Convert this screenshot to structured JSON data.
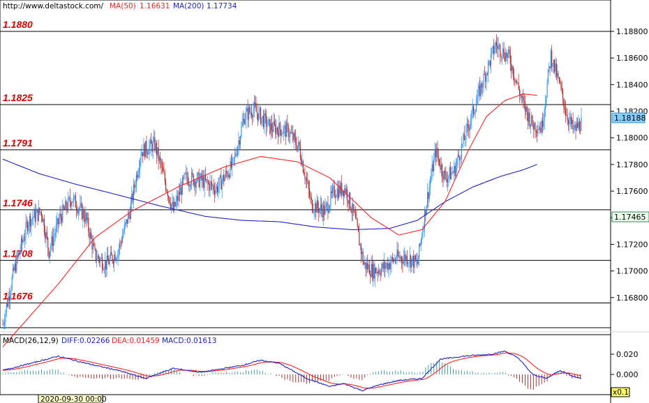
{
  "header": {
    "url": "http://www.deltastock.com/",
    "ma50_label": "MA(50)",
    "ma50_value": "1.16631",
    "ma200_label": "MA(200)",
    "ma200_value": "1.17734"
  },
  "macd_header": {
    "name": "MACD(26,12,9)",
    "diff": "DIFF:0.02266",
    "dea": "DEA:0.01459",
    "macd": "MACD:0.01613"
  },
  "footer": {
    "date": "2020-09-30 00:00",
    "zoom": "x0.1"
  },
  "colors": {
    "bull": "#1e90ff",
    "bear": "#b22222",
    "ma50": "#ff2020",
    "ma200": "#2020d0",
    "level_label": "#e00000",
    "current_price_bg": "#87cefa",
    "level_price_bg": "#eeffee"
  },
  "chart_data": {
    "type": "candlestick",
    "y_axis": {
      "ticks": [
        "1.18800",
        "1.18600",
        "1.18400",
        "1.18200",
        "1.18000",
        "1.17800",
        "1.17600",
        "1.17400",
        "1.17200",
        "1.17000",
        "1.16800"
      ]
    },
    "levels": [
      {
        "label": "1.1880",
        "value": 1.188
      },
      {
        "label": "1.1825",
        "value": 1.1825
      },
      {
        "label": "1.1791",
        "value": 1.1791
      },
      {
        "label": "1.1746",
        "value": 1.1746
      },
      {
        "label": "1.1708",
        "value": 1.1708
      },
      {
        "label": "1.1676",
        "value": 1.1676
      }
    ],
    "current_price": "1.18188",
    "level_price": "1.17465",
    "ma50_anchors": [
      [
        0,
        1.1643
      ],
      [
        60,
        1.169
      ],
      [
        100,
        1.1725
      ],
      [
        140,
        1.1745
      ],
      [
        190,
        1.1763
      ],
      [
        240,
        1.1778
      ],
      [
        280,
        1.1786
      ],
      [
        320,
        1.1782
      ],
      [
        355,
        1.177
      ],
      [
        400,
        1.174
      ],
      [
        430,
        1.1727
      ],
      [
        455,
        1.1731
      ],
      [
        480,
        1.1752
      ],
      [
        505,
        1.179
      ],
      [
        525,
        1.1816
      ],
      [
        545,
        1.1828
      ],
      [
        565,
        1.1833
      ],
      [
        580,
        1.1832
      ]
    ],
    "ma200_anchors": [
      [
        0,
        1.1784
      ],
      [
        40,
        1.1773
      ],
      [
        80,
        1.1765
      ],
      [
        120,
        1.1758
      ],
      [
        170,
        1.1749
      ],
      [
        220,
        1.1741
      ],
      [
        260,
        1.1738
      ],
      [
        300,
        1.1737
      ],
      [
        340,
        1.1733
      ],
      [
        380,
        1.1731
      ],
      [
        420,
        1.1732
      ],
      [
        450,
        1.1738
      ],
      [
        480,
        1.1752
      ],
      [
        510,
        1.1763
      ],
      [
        540,
        1.1771
      ],
      [
        565,
        1.1776
      ],
      [
        580,
        1.178
      ]
    ],
    "price_anchors": [
      [
        0,
        1.166
      ],
      [
        12,
        1.17
      ],
      [
        28,
        1.1738
      ],
      [
        42,
        1.1745
      ],
      [
        50,
        1.1715
      ],
      [
        62,
        1.174
      ],
      [
        75,
        1.1755
      ],
      [
        90,
        1.174
      ],
      [
        100,
        1.1712
      ],
      [
        112,
        1.1705
      ],
      [
        125,
        1.1715
      ],
      [
        138,
        1.1745
      ],
      [
        150,
        1.179
      ],
      [
        165,
        1.1795
      ],
      [
        175,
        1.177
      ],
      [
        185,
        1.1745
      ],
      [
        198,
        1.177
      ],
      [
        215,
        1.1768
      ],
      [
        232,
        1.1762
      ],
      [
        250,
        1.178
      ],
      [
        262,
        1.1816
      ],
      [
        272,
        1.1822
      ],
      [
        290,
        1.1808
      ],
      [
        310,
        1.1805
      ],
      [
        322,
        1.1792
      ],
      [
        335,
        1.175
      ],
      [
        350,
        1.1745
      ],
      [
        360,
        1.176
      ],
      [
        372,
        1.1762
      ],
      [
        382,
        1.174
      ],
      [
        392,
        1.1705
      ],
      [
        402,
        1.17
      ],
      [
        412,
        1.1702
      ],
      [
        428,
        1.171
      ],
      [
        440,
        1.171
      ],
      [
        450,
        1.1705
      ],
      [
        460,
        1.1752
      ],
      [
        470,
        1.179
      ],
      [
        480,
        1.177
      ],
      [
        490,
        1.1775
      ],
      [
        505,
        1.1808
      ],
      [
        520,
        1.184
      ],
      [
        535,
        1.187
      ],
      [
        550,
        1.186
      ],
      [
        565,
        1.1825
      ],
      [
        575,
        1.181
      ],
      [
        585,
        1.1808
      ],
      [
        595,
        1.1862
      ],
      [
        605,
        1.1838
      ],
      [
        612,
        1.1818
      ],
      [
        620,
        1.1805
      ],
      [
        628,
        1.1812
      ]
    ],
    "macd_axis": {
      "ticks": [
        "0.020",
        "0.000"
      ]
    }
  }
}
